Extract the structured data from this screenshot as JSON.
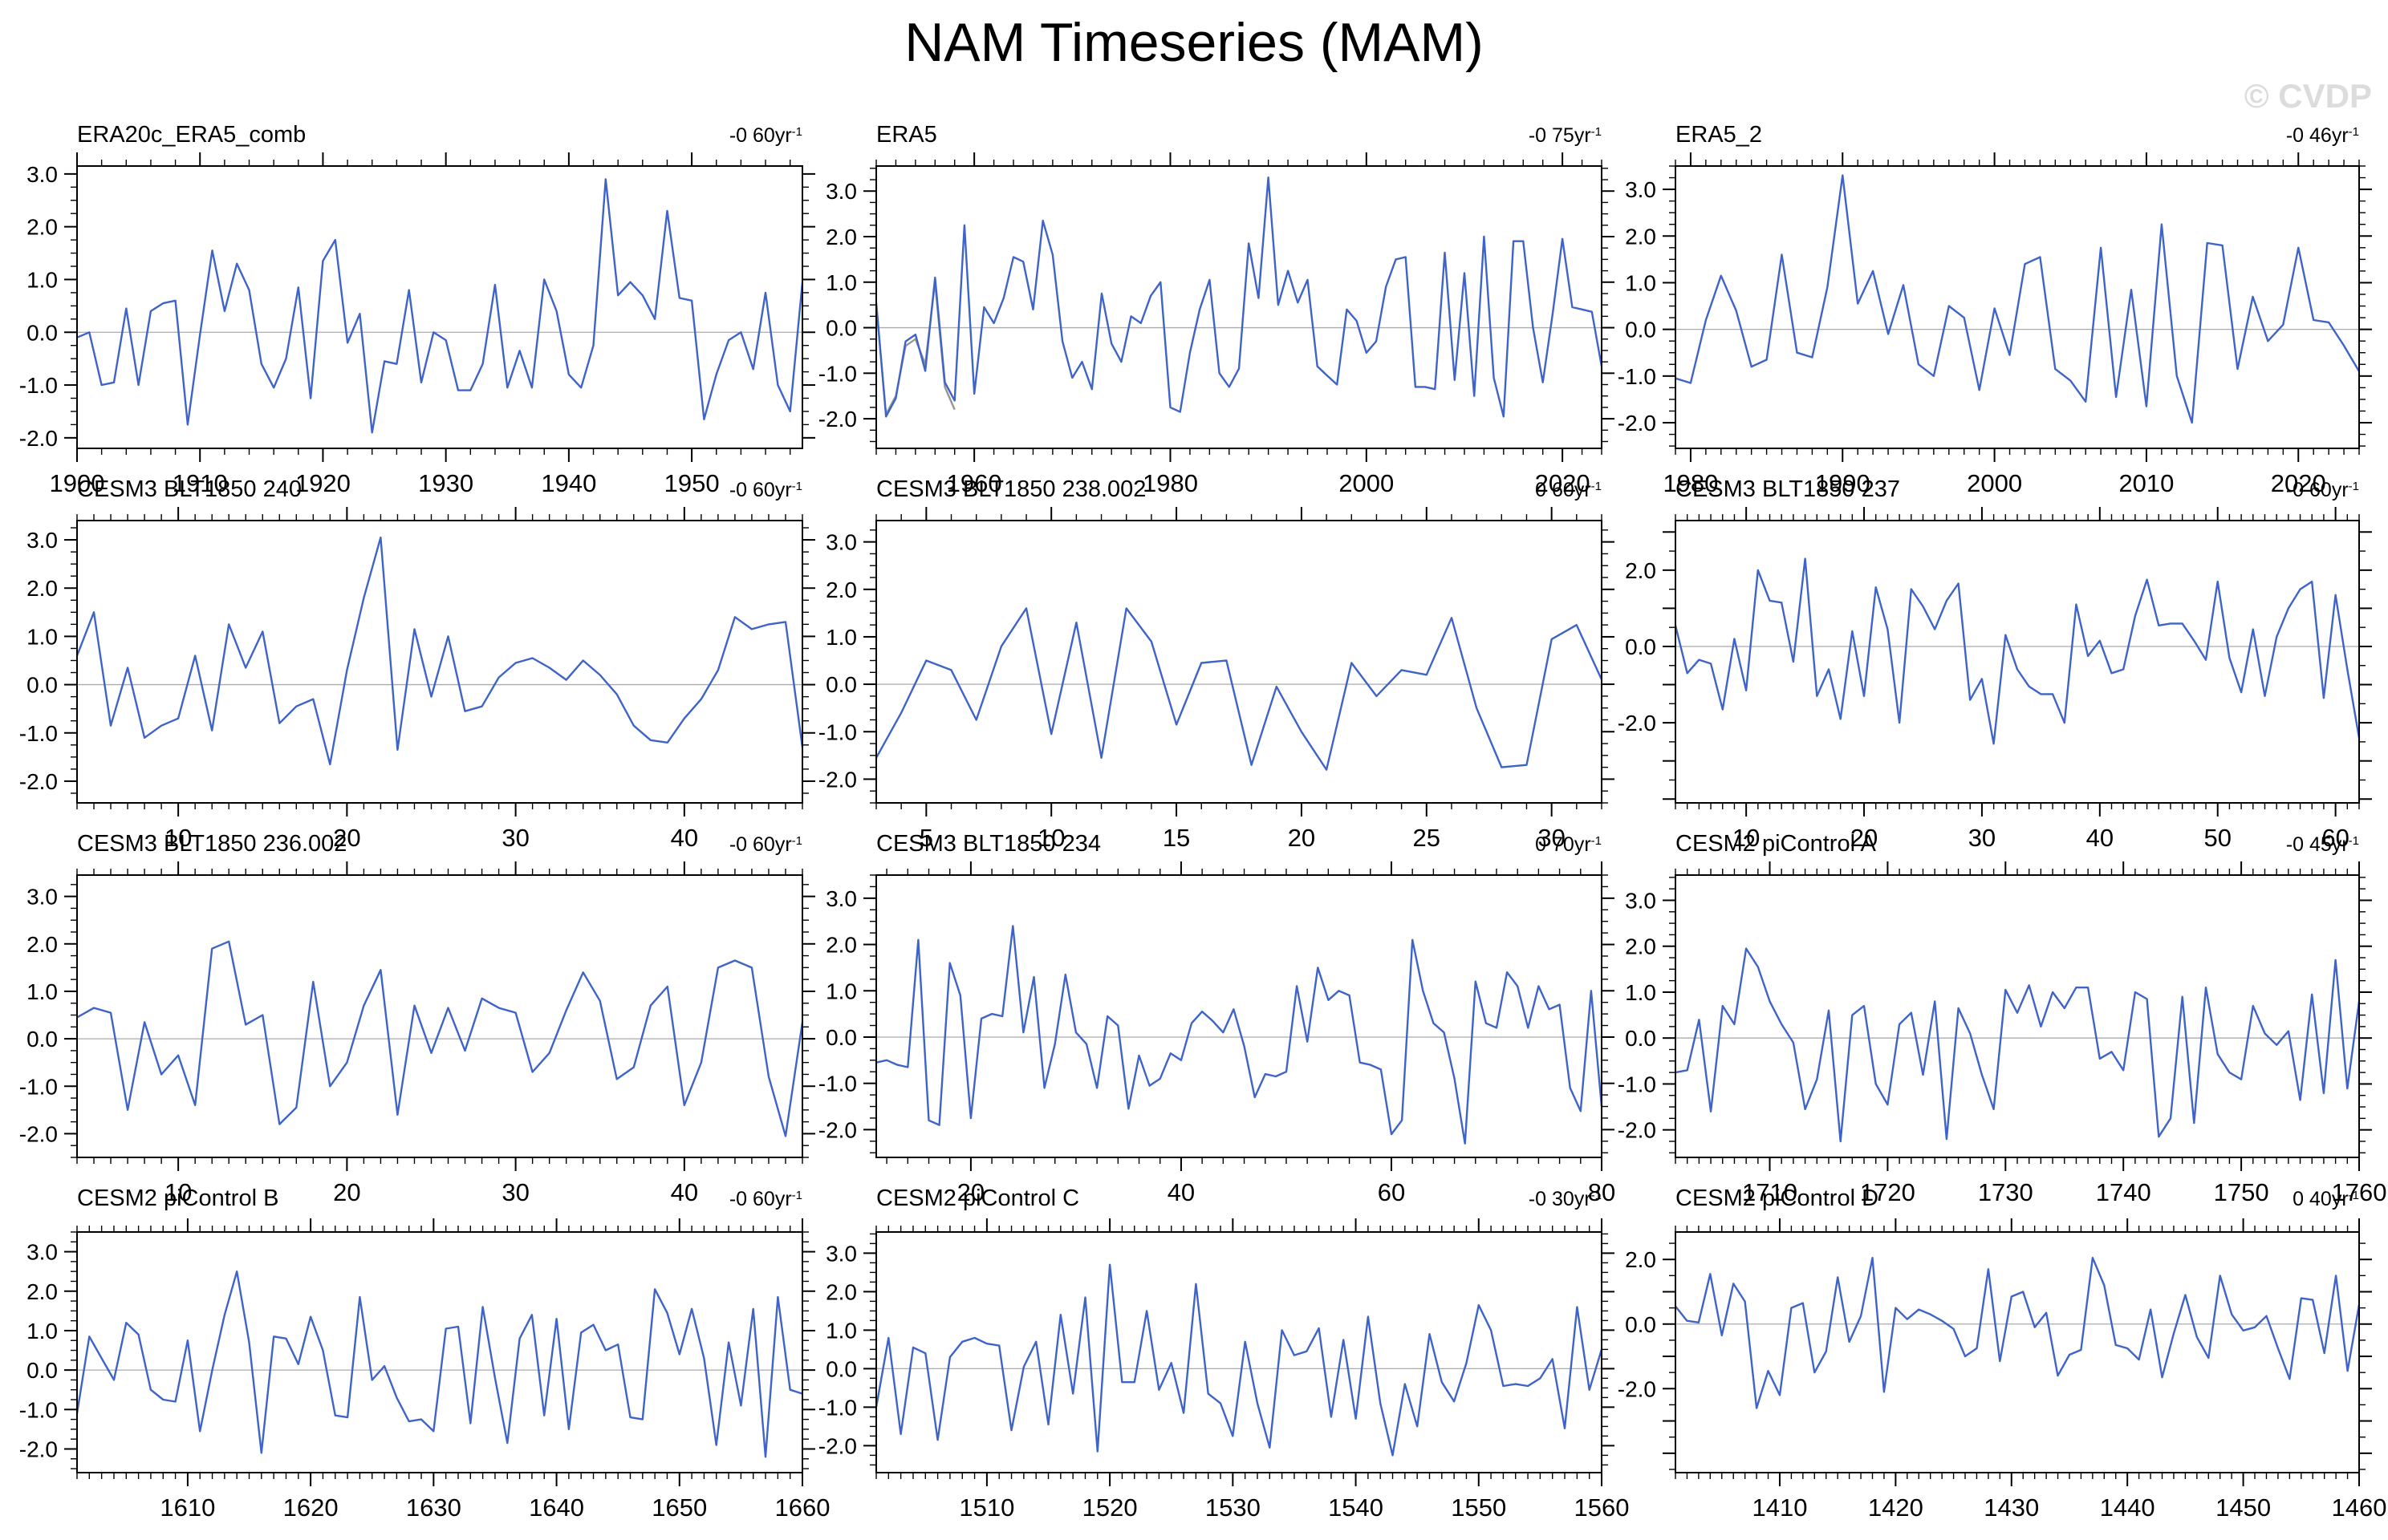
{
  "page": {
    "title": "NAM Timeseries (MAM)",
    "watermark": "© CVDP"
  },
  "chart_data": {
    "type": "line",
    "title": "NAM Timeseries (MAM)",
    "grid": "zero-line-only",
    "legend": "none",
    "line_color": "#3e63c9",
    "secondary_line_color": "#969696",
    "zero_line_color": "#ababab",
    "panels": [
      {
        "title": "ERA20c_ERA5_comb",
        "trend": "-0 60yr⁻¹",
        "trend_base": "-0 60yr",
        "trend_exp": "-1",
        "xlim": [
          1900,
          1959
        ],
        "x_start": 1900,
        "x_major": [
          1900,
          1910,
          1920,
          1930,
          1940,
          1950
        ],
        "x_minor_step": 2,
        "ylim": [
          -2.2,
          3.15
        ],
        "y_labels": [
          3,
          2,
          1,
          0,
          -1,
          -2
        ],
        "y_major_step": 1,
        "y_minor_step": 0.25,
        "values": [
          -0.1,
          0.0,
          -1.0,
          -0.95,
          0.45,
          -1.0,
          0.4,
          0.55,
          0.6,
          -1.75,
          -0.05,
          1.55,
          0.4,
          1.3,
          0.8,
          -0.6,
          -1.05,
          -0.5,
          0.85,
          -1.25,
          1.35,
          1.75,
          -0.2,
          0.35,
          -1.9,
          -0.55,
          -0.6,
          0.8,
          -0.95,
          0.0,
          -0.15,
          -1.1,
          -1.1,
          -0.6,
          0.9,
          -1.05,
          -0.35,
          -1.05,
          1.0,
          0.4,
          -0.8,
          -1.05,
          -0.25,
          2.9,
          0.7,
          0.95,
          0.7,
          0.25,
          2.3,
          0.65,
          0.6,
          -1.65,
          -0.8,
          -0.15,
          0.0,
          -0.7,
          0.75,
          -1.0,
          -1.5,
          0.95
        ]
      },
      {
        "title": "ERA5",
        "trend": "-0 75yr⁻¹",
        "trend_base": "-0 75yr",
        "trend_exp": "-1",
        "xlim": [
          1950,
          2024
        ],
        "x_start": 1950,
        "x_major": [
          1960,
          1980,
          2000,
          2020
        ],
        "x_minor_step": 2,
        "ylim": [
          -2.65,
          3.55
        ],
        "y_labels": [
          3,
          2,
          1,
          0,
          -1,
          -2
        ],
        "y_major_step": 1,
        "y_minor_step": 0.25,
        "values": [
          0.55,
          -1.95,
          -1.55,
          -0.3,
          -0.15,
          -0.95,
          1.1,
          -1.2,
          -1.6,
          2.25,
          -1.45,
          0.45,
          0.1,
          0.65,
          1.55,
          1.45,
          0.4,
          2.35,
          1.6,
          -0.3,
          -1.1,
          -0.75,
          -1.35,
          0.75,
          -0.35,
          -0.75,
          0.25,
          0.1,
          0.7,
          1.0,
          -1.75,
          -1.85,
          -0.55,
          0.4,
          1.05,
          -1.0,
          -1.3,
          -0.9,
          1.85,
          0.65,
          3.3,
          0.5,
          1.25,
          0.55,
          1.05,
          -0.85,
          -1.05,
          -1.25,
          0.4,
          0.15,
          -0.55,
          -0.3,
          0.9,
          1.5,
          1.55,
          -1.3,
          -1.3,
          -1.35,
          1.65,
          -1.15,
          1.2,
          -1.5,
          2.0,
          -1.1,
          -1.95,
          1.9,
          1.9,
          0.0,
          -1.2,
          0.3,
          1.95,
          0.45,
          0.4,
          0.35,
          -0.85
        ],
        "secondary_x_start": 1950,
        "secondary_values": [
          0.5,
          -1.9,
          -1.5,
          -0.4,
          -0.25,
          -0.8,
          1.0,
          -1.3,
          -1.8
        ]
      },
      {
        "title": "ERA5_2",
        "trend": "-0 46yr⁻¹",
        "trend_base": "-0 46yr",
        "trend_exp": "-1",
        "xlim": [
          1979,
          2024
        ],
        "x_start": 1979,
        "x_major": [
          1980,
          1990,
          2000,
          2010,
          2020
        ],
        "x_minor_step": 1,
        "ylim": [
          -2.55,
          3.5
        ],
        "y_labels": [
          3,
          2,
          1,
          0,
          -1,
          -2
        ],
        "y_major_step": 1,
        "y_minor_step": 0.25,
        "values": [
          -1.05,
          -1.15,
          0.2,
          1.15,
          0.4,
          -0.8,
          -0.65,
          1.6,
          -0.5,
          -0.6,
          0.9,
          3.3,
          0.55,
          1.25,
          -0.1,
          0.95,
          -0.75,
          -1.0,
          0.5,
          0.25,
          -1.3,
          0.45,
          -0.55,
          1.4,
          1.55,
          -0.85,
          -1.1,
          -1.55,
          1.75,
          -1.45,
          0.85,
          -1.65,
          2.25,
          -1.0,
          -2.0,
          1.85,
          1.8,
          -0.85,
          0.7,
          -0.25,
          0.1,
          1.75,
          0.2,
          0.15,
          -0.35,
          -0.9
        ]
      },
      {
        "title": "CESM3 BLT1850 240",
        "trend": "-0 60yr⁻¹",
        "trend_base": "-0 60yr",
        "trend_exp": "-1",
        "xlim": [
          4,
          47
        ],
        "x_start": 4,
        "x_major": [
          10,
          20,
          30,
          40
        ],
        "x_minor_step": 1,
        "ylim": [
          -2.45,
          3.4
        ],
        "y_labels": [
          3,
          2,
          1,
          0,
          -1,
          -2
        ],
        "y_major_step": 1,
        "y_minor_step": 0.25,
        "values": [
          0.6,
          1.5,
          -0.85,
          0.35,
          -1.1,
          -0.85,
          -0.7,
          0.6,
          -0.95,
          1.25,
          0.35,
          1.1,
          -0.8,
          -0.45,
          -0.3,
          -1.65,
          0.3,
          1.8,
          3.05,
          -1.35,
          1.15,
          -0.25,
          1.0,
          -0.55,
          -0.45,
          0.15,
          0.45,
          0.55,
          0.35,
          0.1,
          0.5,
          0.2,
          -0.2,
          -0.85,
          -1.15,
          -1.2,
          -0.7,
          -0.3,
          0.3,
          1.4,
          1.15,
          1.25,
          1.3,
          -1.3
        ]
      },
      {
        "title": "CESM3 BLT1850 238.002",
        "trend": "0 60yr⁻¹",
        "trend_base": "0 60yr",
        "trend_exp": "-1",
        "xlim": [
          3,
          32
        ],
        "x_start": 3,
        "x_major": [
          5,
          10,
          15,
          20,
          25,
          30
        ],
        "x_minor_step": 1,
        "ylim": [
          -2.5,
          3.45
        ],
        "y_labels": [
          3,
          2,
          1,
          0,
          -1,
          -2
        ],
        "y_major_step": 1,
        "y_minor_step": 0.25,
        "values": [
          -1.55,
          -0.6,
          0.5,
          0.3,
          -0.75,
          0.8,
          1.6,
          -1.05,
          1.3,
          -1.55,
          1.6,
          0.9,
          -0.85,
          0.45,
          0.5,
          -1.7,
          -0.05,
          -1.0,
          -1.8,
          0.45,
          -0.25,
          0.3,
          0.2,
          1.4,
          -0.5,
          -1.75,
          -1.7,
          0.95,
          1.25,
          0.1
        ]
      },
      {
        "title": "CESM3 BLT1850 237",
        "trend": "-0 60yr⁻¹",
        "trend_base": "-0 60yr",
        "trend_exp": "-1",
        "xlim": [
          4,
          62
        ],
        "x_start": 4,
        "x_major": [
          10,
          20,
          30,
          40,
          50,
          60
        ],
        "x_minor_step": 1,
        "ylim": [
          -4.1,
          3.3
        ],
        "y_labels": [
          2,
          0,
          -2
        ],
        "y_major_step": 1,
        "y_minor_step": 0.5,
        "values": [
          0.55,
          -0.7,
          -0.35,
          -0.45,
          -1.65,
          0.2,
          -1.15,
          2.0,
          1.2,
          1.15,
          -0.4,
          2.3,
          -1.3,
          -0.6,
          -1.9,
          0.4,
          -1.3,
          1.55,
          0.45,
          -2.0,
          1.5,
          1.05,
          0.45,
          1.2,
          1.65,
          -1.4,
          -0.85,
          -2.55,
          0.3,
          -0.6,
          -1.05,
          -1.25,
          -1.25,
          -2.0,
          1.1,
          -0.25,
          0.15,
          -0.7,
          -0.6,
          0.8,
          1.75,
          0.55,
          0.6,
          0.6,
          0.15,
          -0.35,
          1.7,
          -0.3,
          -1.2,
          0.45,
          -1.3,
          0.25,
          1.0,
          1.5,
          1.7,
          -1.35,
          1.35,
          -0.6,
          -2.4
        ]
      },
      {
        "title": "CESM3 BLT1850 236.002",
        "trend": "-0 60yr⁻¹",
        "trend_base": "-0 60yr",
        "trend_exp": "-1",
        "xlim": [
          4,
          47
        ],
        "x_start": 4,
        "x_major": [
          10,
          20,
          30,
          40
        ],
        "x_minor_step": 1,
        "ylim": [
          -2.5,
          3.45
        ],
        "y_labels": [
          3,
          2,
          1,
          0,
          -1,
          -2
        ],
        "y_major_step": 1,
        "y_minor_step": 0.25,
        "values": [
          0.45,
          0.65,
          0.55,
          -1.5,
          0.35,
          -0.75,
          -0.35,
          -1.4,
          1.9,
          2.05,
          0.3,
          0.5,
          -1.8,
          -1.45,
          1.2,
          -1.0,
          -0.5,
          0.7,
          1.45,
          -1.6,
          0.7,
          -0.3,
          0.65,
          -0.25,
          0.85,
          0.65,
          0.55,
          -0.7,
          -0.3,
          0.6,
          1.4,
          0.8,
          -0.85,
          -0.6,
          0.7,
          1.1,
          -1.4,
          -0.5,
          1.5,
          1.65,
          1.5,
          -0.8,
          -2.05,
          0.35
        ]
      },
      {
        "title": "CESM3 BLT1850 234",
        "trend": "0 70yr⁻¹",
        "trend_base": "0 70yr",
        "trend_exp": "-1",
        "xlim": [
          11,
          80
        ],
        "x_start": 11,
        "x_major": [
          20,
          40,
          60,
          80
        ],
        "x_minor_step": 2,
        "ylim": [
          -2.6,
          3.5
        ],
        "y_labels": [
          3,
          2,
          1,
          0,
          -1,
          -2
        ],
        "y_major_step": 1,
        "y_minor_step": 0.25,
        "values": [
          -0.55,
          -0.5,
          -0.6,
          -0.65,
          2.1,
          -1.8,
          -1.9,
          1.6,
          0.9,
          -1.75,
          0.4,
          0.5,
          0.45,
          2.4,
          0.1,
          1.3,
          -1.1,
          -0.15,
          1.35,
          0.1,
          -0.15,
          -1.1,
          0.45,
          0.25,
          -1.55,
          -0.4,
          -1.05,
          -0.9,
          -0.35,
          -0.5,
          0.3,
          0.55,
          0.35,
          0.1,
          0.6,
          -0.2,
          -1.3,
          -0.8,
          -0.85,
          -0.75,
          1.1,
          -0.1,
          1.5,
          0.8,
          1.0,
          0.9,
          -0.55,
          -0.6,
          -0.7,
          -2.1,
          -1.8,
          2.1,
          1.0,
          0.3,
          0.1,
          -0.9,
          -2.3,
          1.2,
          0.3,
          0.2,
          1.4,
          1.1,
          0.2,
          1.1,
          0.6,
          0.7,
          -1.1,
          -1.6,
          1.0,
          -1.5
        ]
      },
      {
        "title": "CESM2 piControl A",
        "trend": "-0 45yr⁻¹",
        "trend_base": "-0 45yr",
        "trend_exp": "-1",
        "xlim": [
          1702,
          1760
        ],
        "x_start": 1702,
        "x_major": [
          1710,
          1720,
          1730,
          1740,
          1750,
          1760
        ],
        "x_minor_step": 1,
        "ylim": [
          -2.6,
          3.55
        ],
        "y_labels": [
          3,
          2,
          1,
          0,
          -1,
          -2
        ],
        "y_major_step": 1,
        "y_minor_step": 0.25,
        "values": [
          -0.75,
          -0.7,
          0.4,
          -1.6,
          0.7,
          0.3,
          1.95,
          1.55,
          0.8,
          0.3,
          -0.1,
          -1.55,
          -0.9,
          0.6,
          -2.25,
          0.5,
          0.7,
          -1.0,
          -1.45,
          0.3,
          0.55,
          -0.8,
          0.8,
          -2.2,
          0.65,
          0.1,
          -0.8,
          -1.55,
          1.05,
          0.55,
          1.15,
          0.25,
          1.0,
          0.65,
          1.1,
          1.1,
          -0.45,
          -0.3,
          -0.7,
          1.0,
          0.85,
          -2.15,
          -1.75,
          0.9,
          -1.85,
          1.1,
          -0.35,
          -0.75,
          -0.9,
          0.7,
          0.1,
          -0.15,
          0.15,
          -1.35,
          0.95,
          -1.2,
          1.7,
          -1.1,
          0.8
        ]
      },
      {
        "title": "CESM2 piControl B",
        "trend": "-0 60yr⁻¹",
        "trend_base": "-0 60yr",
        "trend_exp": "-1",
        "xlim": [
          1601,
          1660
        ],
        "x_start": 1601,
        "x_major": [
          1610,
          1620,
          1630,
          1640,
          1650,
          1660
        ],
        "x_minor_step": 1,
        "ylim": [
          -2.6,
          3.5
        ],
        "y_labels": [
          3,
          2,
          1,
          0,
          -1,
          -2
        ],
        "y_major_step": 1,
        "y_minor_step": 0.25,
        "values": [
          -1.1,
          0.85,
          0.3,
          -0.25,
          1.2,
          0.9,
          -0.5,
          -0.75,
          -0.8,
          0.75,
          -1.55,
          0.0,
          1.4,
          2.5,
          0.7,
          -2.1,
          0.85,
          0.8,
          0.15,
          1.35,
          0.5,
          -1.15,
          -1.2,
          1.85,
          -0.25,
          0.1,
          -0.7,
          -1.3,
          -1.25,
          -1.55,
          1.05,
          1.1,
          -1.35,
          1.6,
          -0.2,
          -1.85,
          0.8,
          1.4,
          -1.15,
          1.3,
          -1.5,
          0.95,
          1.15,
          0.5,
          0.65,
          -1.2,
          -1.25,
          2.05,
          1.45,
          0.4,
          1.55,
          0.3,
          -1.9,
          0.7,
          -0.9,
          1.55,
          -2.2,
          1.85,
          -0.5,
          -0.6
        ]
      },
      {
        "title": "CESM2 piControl C",
        "trend": "-0 30yr⁻¹",
        "trend_base": "-0 30yr",
        "trend_exp": "-1",
        "xlim": [
          1501,
          1560
        ],
        "x_start": 1501,
        "x_major": [
          1510,
          1520,
          1530,
          1540,
          1550,
          1560
        ],
        "x_minor_step": 1,
        "ylim": [
          -2.7,
          3.55
        ],
        "y_labels": [
          3,
          2,
          1,
          0,
          -1,
          -2
        ],
        "y_major_step": 1,
        "y_minor_step": 0.25,
        "values": [
          -1.0,
          0.8,
          -1.7,
          0.55,
          0.4,
          -1.85,
          0.3,
          0.7,
          0.8,
          0.65,
          0.6,
          -1.6,
          0.05,
          0.7,
          -1.45,
          1.4,
          -0.65,
          1.85,
          -2.15,
          2.7,
          -0.35,
          -0.35,
          1.5,
          -0.55,
          0.15,
          -1.15,
          2.2,
          -0.65,
          -0.9,
          -1.75,
          0.7,
          -0.9,
          -2.05,
          1.0,
          0.35,
          0.45,
          1.05,
          -1.25,
          0.75,
          -1.3,
          1.35,
          -0.9,
          -2.25,
          -0.4,
          -1.5,
          0.9,
          -0.35,
          -0.85,
          0.15,
          1.65,
          1.0,
          -0.45,
          -0.4,
          -0.45,
          -0.25,
          0.25,
          -1.55,
          1.6,
          -0.55,
          0.5
        ]
      },
      {
        "title": "CESM2 piControl D",
        "trend": "0 40yr⁻¹",
        "trend_base": "0 40yr",
        "trend_exp": "-1",
        "xlim": [
          1401,
          1460
        ],
        "x_start": 1401,
        "x_major": [
          1410,
          1420,
          1430,
          1440,
          1450,
          1460
        ],
        "x_minor_step": 1,
        "ylim": [
          -4.6,
          2.85
        ],
        "y_labels": [
          2,
          0,
          -2
        ],
        "y_major_step": 1,
        "y_minor_step": 0.5,
        "values": [
          0.55,
          0.1,
          0.05,
          1.55,
          -0.35,
          1.25,
          0.7,
          -2.6,
          -1.45,
          -2.2,
          0.5,
          0.65,
          -1.5,
          -0.85,
          1.45,
          -0.55,
          0.25,
          2.05,
          -2.1,
          0.5,
          0.15,
          0.45,
          0.3,
          0.1,
          -0.15,
          -1.0,
          -0.75,
          1.7,
          -1.15,
          0.85,
          1.0,
          -0.1,
          0.35,
          -1.6,
          -0.95,
          -0.8,
          2.05,
          1.2,
          -0.65,
          -0.75,
          -1.1,
          0.45,
          -1.65,
          -0.3,
          0.9,
          -0.4,
          -1.05,
          1.5,
          0.3,
          -0.2,
          -0.1,
          0.25,
          -0.75,
          -1.7,
          0.8,
          0.75,
          -0.9,
          1.5,
          -1.45,
          0.6
        ]
      }
    ]
  }
}
